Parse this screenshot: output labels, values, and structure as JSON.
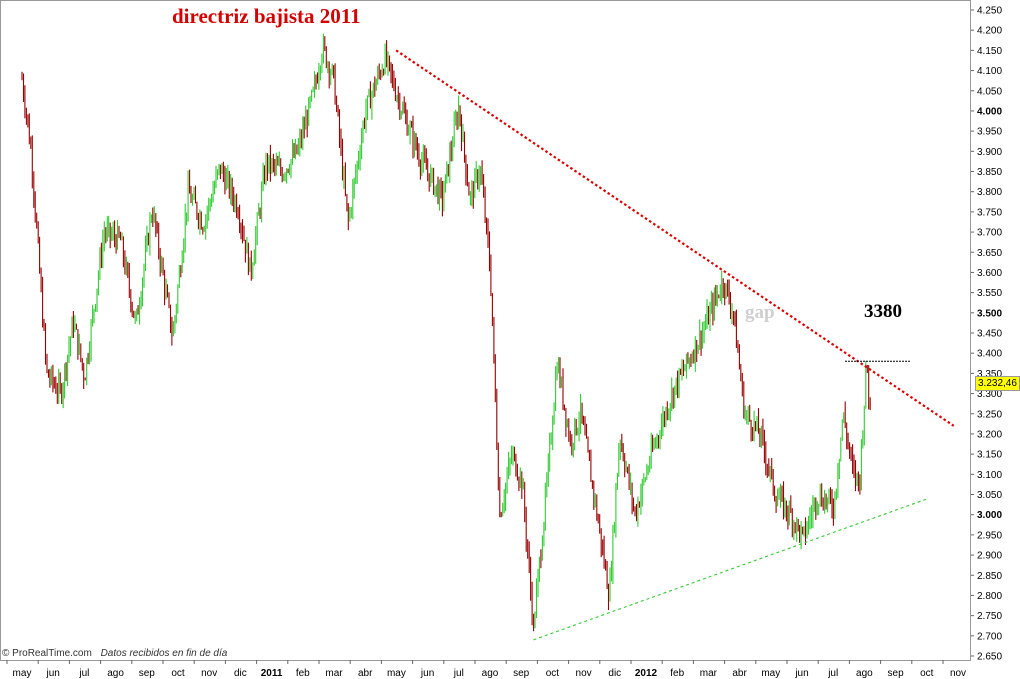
{
  "title": "directriz bajista 2011",
  "footer": {
    "source": "© ProRealTime.com",
    "note": "Datos recibidos en fin de día"
  },
  "annotations": {
    "level_label": "3380",
    "gap_label": "gap"
  },
  "last_value_label": "3.232,46",
  "colors": {
    "up": "#33cc33",
    "down": "#990000",
    "resistance": "#dd0000",
    "support": "#33cc33",
    "last_box": "#ffff00"
  },
  "chart_data": {
    "type": "candlestick",
    "ylim": [
      2650,
      4250
    ],
    "y_ticks": [
      "4.250",
      "4.200",
      "4.150",
      "4.100",
      "4.050",
      "4.000",
      "3.950",
      "3.900",
      "3.850",
      "3.800",
      "3.750",
      "3.700",
      "3.650",
      "3.600",
      "3.550",
      "3.500",
      "3.450",
      "3.400",
      "3.350",
      "3.300",
      "3.250",
      "3.200",
      "3.150",
      "3.100",
      "3.050",
      "3.000",
      "2.950",
      "2.900",
      "2.850",
      "2.800",
      "2.750",
      "2.700",
      "2.650"
    ],
    "bold_y_ticks": [
      "4.000",
      "3.500",
      "3.000"
    ],
    "x_labels": [
      "may",
      "jun",
      "jul",
      "ago",
      "sep",
      "oct",
      "nov",
      "dic",
      "2011",
      "feb",
      "mar",
      "abr",
      "may",
      "jun",
      "jul",
      "ago",
      "sep",
      "oct",
      "nov",
      "dic",
      "2012",
      "feb",
      "mar",
      "abr",
      "may",
      "jun",
      "jul",
      "ago",
      "sep",
      "oct",
      "nov"
    ],
    "bold_x_labels": [
      "2011",
      "2012"
    ],
    "price_path": [
      [
        "2010-05-01",
        4080
      ],
      [
        "2010-05-10",
        3900
      ],
      [
        "2010-05-25",
        3350
      ],
      [
        "2010-06-08",
        3300
      ],
      [
        "2010-06-20",
        3480
      ],
      [
        "2010-07-01",
        3340
      ],
      [
        "2010-07-20",
        3700
      ],
      [
        "2010-08-05",
        3680
      ],
      [
        "2010-08-20",
        3470
      ],
      [
        "2010-09-05",
        3760
      ],
      [
        "2010-09-25",
        3440
      ],
      [
        "2010-10-10",
        3800
      ],
      [
        "2010-10-25",
        3720
      ],
      [
        "2010-11-10",
        3860
      ],
      [
        "2010-11-28",
        3760
      ],
      [
        "2010-12-10",
        3600
      ],
      [
        "2010-12-25",
        3870
      ],
      [
        "2011-01-10",
        3850
      ],
      [
        "2011-01-25",
        3900
      ],
      [
        "2011-02-10",
        4050
      ],
      [
        "2011-02-18",
        4160
      ],
      [
        "2011-03-01",
        4080
      ],
      [
        "2011-03-15",
        3720
      ],
      [
        "2011-04-01",
        4000
      ],
      [
        "2011-04-20",
        4130
      ],
      [
        "2011-05-10",
        3980
      ],
      [
        "2011-05-25",
        3880
      ],
      [
        "2011-06-15",
        3780
      ],
      [
        "2011-07-01",
        4010
      ],
      [
        "2011-07-12",
        3780
      ],
      [
        "2011-07-22",
        3860
      ],
      [
        "2011-08-01",
        3600
      ],
      [
        "2011-08-10",
        3000
      ],
      [
        "2011-08-22",
        3150
      ],
      [
        "2011-09-01",
        3080
      ],
      [
        "2011-09-12",
        2720
      ],
      [
        "2011-09-26",
        3100
      ],
      [
        "2011-10-05",
        3380
      ],
      [
        "2011-10-18",
        3180
      ],
      [
        "2011-10-28",
        3250
      ],
      [
        "2011-11-10",
        3050
      ],
      [
        "2011-11-25",
        2800
      ],
      [
        "2011-12-05",
        3200
      ],
      [
        "2011-12-20",
        3000
      ],
      [
        "2012-01-05",
        3150
      ],
      [
        "2012-01-25",
        3300
      ],
      [
        "2012-02-10",
        3380
      ],
      [
        "2012-02-25",
        3460
      ],
      [
        "2012-03-15",
        3580
      ],
      [
        "2012-03-25",
        3500
      ],
      [
        "2012-04-05",
        3250
      ],
      [
        "2012-04-20",
        3200
      ],
      [
        "2012-05-05",
        3050
      ],
      [
        "2012-05-20",
        3000
      ],
      [
        "2012-06-01",
        2940
      ],
      [
        "2012-06-15",
        3050
      ],
      [
        "2012-07-01",
        3020
      ],
      [
        "2012-07-10",
        3250
      ],
      [
        "2012-07-20",
        3100
      ],
      [
        "2012-07-26",
        3080
      ],
      [
        "2012-08-02",
        3380
      ],
      [
        "2012-08-06",
        3232.46
      ]
    ],
    "resistance_line": {
      "start": [
        "2011-05-01",
        4150
      ],
      "end": [
        "2012-10-26",
        3220
      ]
    },
    "support_line": {
      "start": [
        "2011-09-12",
        2690
      ],
      "end": [
        "2012-10-01",
        3040
      ]
    },
    "level_3380": 3380
  }
}
